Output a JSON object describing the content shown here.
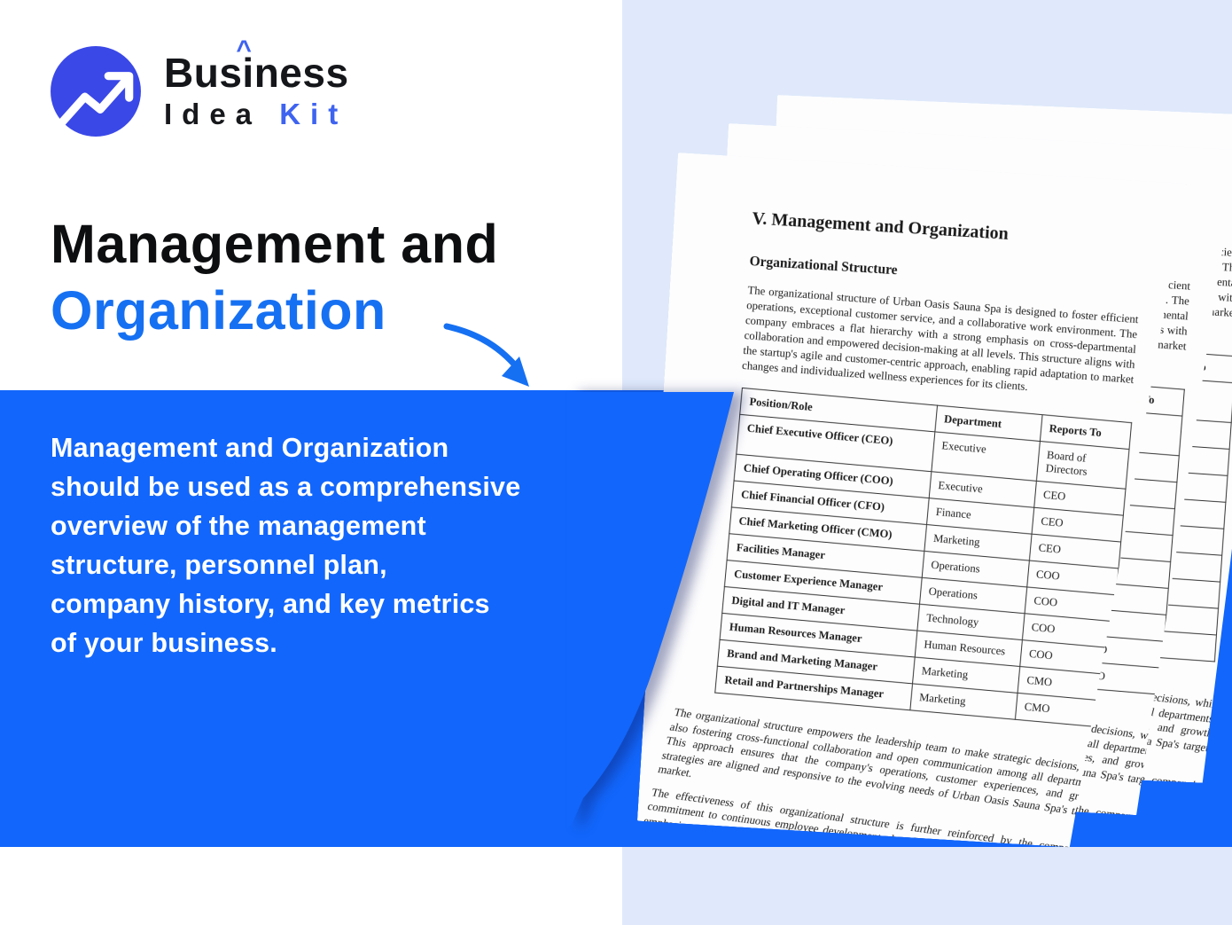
{
  "brand": {
    "name_pre": "Bus",
    "name_i": "i",
    "name_post": "ness",
    "accent_mark": "^",
    "line2_dark": "Idea",
    "line2_accent": "Kit"
  },
  "hero": {
    "title_line1": "Management and",
    "title_line2": "Organization"
  },
  "info_box": {
    "text": "Management and Organization\nshould be used as a comprehensive\noverview of the management\nstructure, personnel plan,\ncompany history, and key metrics\nof your business."
  },
  "colors": {
    "accent_blue": "#1266FB",
    "heading_blue": "#1670F2",
    "logo_blue": "#3A48E7",
    "kit_blue": "#3E63F0",
    "panel_blue": "#DFE9FB"
  },
  "document": {
    "title": "V. Management and Organization",
    "section_heading": "Organizational Structure",
    "intro": "The organizational structure of Urban Oasis Sauna Spa is designed to foster efficient operations, exceptional customer service, and a collaborative work environment. The company embraces a flat hierarchy with a strong emphasis on cross-departmental collaboration and empowered decision-making at all levels. This structure aligns with the startup's agile and customer-centric approach, enabling rapid adaptation to market changes and individualized wellness experiences for its clients.",
    "table": {
      "headers": [
        "Position/Role",
        "Department",
        "Reports To"
      ],
      "rows": [
        [
          "Chief Executive Officer (CEO)",
          "Executive",
          "Board of Directors"
        ],
        [
          "Chief Operating Officer (COO)",
          "Executive",
          "CEO"
        ],
        [
          "Chief Financial Officer (CFO)",
          "Finance",
          "CEO"
        ],
        [
          "Chief Marketing Officer (CMO)",
          "Marketing",
          "CEO"
        ],
        [
          "Facilities Manager",
          "Operations",
          "COO"
        ],
        [
          "Customer Experience Manager",
          "Operations",
          "COO"
        ],
        [
          "Digital and IT Manager",
          "Technology",
          "COO"
        ],
        [
          "Human Resources Manager",
          "Human Resources",
          "COO"
        ],
        [
          "Brand and Marketing Manager",
          "Marketing",
          "CMO"
        ],
        [
          "Retail and Partnerships Manager",
          "Marketing",
          "CMO"
        ]
      ]
    },
    "outro1": "The organizational structure empowers the leadership team to make strategic decisions, while also fostering cross-functional collaboration and open communication among all departments. This approach ensures that the company's operations, customer experiences, and growth strategies are aligned and responsive to the evolving needs of Urban Oasis Sauna Spa's target market.",
    "outro2": "The effectiveness of this organizational structure is further reinforced by the company's commitment to continuous employee development, data-driven decision-making, and a strong emphasis on"
  }
}
